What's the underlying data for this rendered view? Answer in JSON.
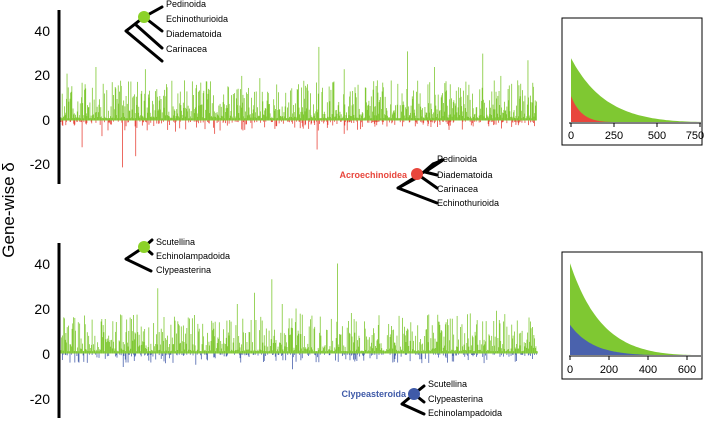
{
  "ylabel": "Gene-wise δ",
  "colors": {
    "green": "#7fc832",
    "red": "#e8463c",
    "blue": "#4a62ad",
    "black": "#000000",
    "gray": "#999999",
    "node_green": "#8cd229",
    "node_red": "#e8463c",
    "node_blue": "#3f5aa8"
  },
  "chart_data": [
    {
      "type": "bar",
      "panel": "top",
      "ylabel": "Gene-wise δ",
      "ylim": [
        -30,
        47
      ],
      "yticks": [
        "40",
        "20",
        "0",
        "-20"
      ],
      "n_genes": 790,
      "peaks": [
        {
          "gene": 10,
          "value": 21
        },
        {
          "gene": 58,
          "value": 24
        },
        {
          "gene": 90,
          "value": 15
        },
        {
          "gene": 140,
          "value": 23
        },
        {
          "gene": 205,
          "value": 18
        },
        {
          "gene": 300,
          "value": 20
        },
        {
          "gene": 330,
          "value": 19
        },
        {
          "gene": 428,
          "value": 33
        },
        {
          "gene": 470,
          "value": 23
        },
        {
          "gene": 525,
          "value": 18
        },
        {
          "gene": 575,
          "value": 31
        },
        {
          "gene": 620,
          "value": 24
        },
        {
          "gene": 700,
          "value": 30
        },
        {
          "gene": 730,
          "value": 20
        },
        {
          "gene": 775,
          "value": 27
        }
      ],
      "troughs": [
        {
          "gene": 35,
          "value": -12
        },
        {
          "gene": 68,
          "value": -7
        },
        {
          "gene": 102,
          "value": -21
        },
        {
          "gene": 124,
          "value": -16
        },
        {
          "gene": 190,
          "value": -5
        },
        {
          "gene": 255,
          "value": -6
        },
        {
          "gene": 300,
          "value": -4
        },
        {
          "gene": 425,
          "value": -13
        },
        {
          "gene": 470,
          "value": -6
        }
      ],
      "inset": {
        "type": "area",
        "xticks": [
          "0",
          "250",
          "500",
          "750"
        ],
        "xlim": [
          0,
          830
        ],
        "series": [
          {
            "color": "green",
            "n": 790,
            "max": 30
          },
          {
            "color": "red",
            "n": 240,
            "max": 12
          }
        ]
      },
      "trees": [
        {
          "tips": [
            "Pedinoida",
            "Echinothurioida",
            "Diadematoida",
            "Carinacea"
          ],
          "node_color": "node_green",
          "label": ""
        },
        {
          "tips": [
            "Pedinoida",
            "Diadematoida",
            "Carinacea",
            "Echinothurioida"
          ],
          "node_color": "node_red",
          "label": "Acroechinoidea"
        }
      ]
    },
    {
      "type": "bar",
      "panel": "bottom",
      "ylabel": "Gene-wise δ",
      "ylim": [
        -30,
        48
      ],
      "yticks": [
        "40",
        "20",
        "0",
        "-20"
      ],
      "n_genes": 690,
      "peaks": [
        {
          "gene": 35,
          "value": 13
        },
        {
          "gene": 80,
          "value": 14
        },
        {
          "gene": 140,
          "value": 29
        },
        {
          "gene": 255,
          "value": 22
        },
        {
          "gene": 280,
          "value": 27
        },
        {
          "gene": 305,
          "value": 33
        },
        {
          "gene": 320,
          "value": 22
        },
        {
          "gene": 340,
          "value": 20
        },
        {
          "gene": 400,
          "value": 40
        },
        {
          "gene": 420,
          "value": 18
        },
        {
          "gene": 460,
          "value": 17
        },
        {
          "gene": 530,
          "value": 17
        },
        {
          "gene": 580,
          "value": 13
        },
        {
          "gene": 630,
          "value": 19
        }
      ],
      "troughs": [
        {
          "gene": 20,
          "value": -4
        },
        {
          "gene": 90,
          "value": -6
        },
        {
          "gene": 130,
          "value": -4
        },
        {
          "gene": 195,
          "value": -5
        },
        {
          "gene": 260,
          "value": -4
        },
        {
          "gene": 335,
          "value": -7
        },
        {
          "gene": 480,
          "value": -4
        }
      ],
      "inset": {
        "type": "area",
        "xticks": [
          "0",
          "200",
          "400",
          "600"
        ],
        "xlim": [
          0,
          690
        ],
        "series": [
          {
            "color": "green",
            "n": 635,
            "max": 22
          },
          {
            "color": "blue",
            "n": 440,
            "max": 7
          }
        ]
      },
      "trees": [
        {
          "tips": [
            "Scutellina",
            "Echinolampadoida",
            "Clypeasterina"
          ],
          "node_color": "node_green",
          "label": ""
        },
        {
          "tips": [
            "Scutellina",
            "Clypeasterina",
            "Echinolampadoida"
          ],
          "node_color": "node_blue",
          "label": "Clypeasteroida"
        }
      ]
    }
  ]
}
